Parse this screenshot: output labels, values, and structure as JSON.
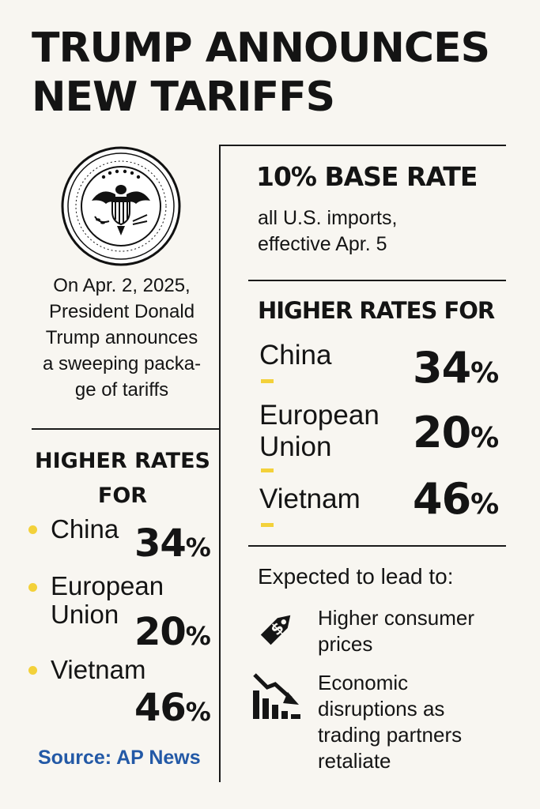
{
  "title": [
    "TRUMP ANNOUNCES",
    "NEW TARIFFS"
  ],
  "seal_icon": "presidential-seal-icon",
  "intro": [
    "On Apr. 2, 2025,",
    "President Donald",
    "Trump announces",
    "a sweeping packa-",
    "ge of tariffs"
  ],
  "left": {
    "heading": [
      "HIGHER RATES",
      "FOR"
    ],
    "items": [
      {
        "name": [
          "China"
        ],
        "value": "34",
        "unit": "%"
      },
      {
        "name": [
          "European",
          "Union"
        ],
        "value": "20",
        "unit": "%"
      },
      {
        "name": [
          "Vietnam"
        ],
        "value": "46",
        "unit": "%"
      }
    ]
  },
  "source": "Source: AP News",
  "base": {
    "heading": "10% BASE RATE",
    "sub": [
      "all U.S. imports,",
      "effective Apr. 5"
    ]
  },
  "right": {
    "heading": "HIGHER RATES FOR",
    "items": [
      {
        "name": [
          "China"
        ],
        "value": "34",
        "unit": "%"
      },
      {
        "name": [
          "European",
          "Union"
        ],
        "value": "20",
        "unit": "%"
      },
      {
        "name": [
          "Vietnam"
        ],
        "value": "46",
        "unit": "%"
      }
    ]
  },
  "expected": {
    "heading": "Expected to lead to:",
    "items": [
      {
        "icon": "price-tag-icon",
        "text": [
          "Higher consumer",
          "prices"
        ]
      },
      {
        "icon": "declining-chart-icon",
        "text": [
          "Economic",
          "disruptions as",
          "trading partners",
          "retaliate"
        ]
      }
    ]
  },
  "colors": {
    "accent": "#f3d13a",
    "source": "#2359a6",
    "ink": "#141414",
    "background": "#f8f6f1"
  }
}
